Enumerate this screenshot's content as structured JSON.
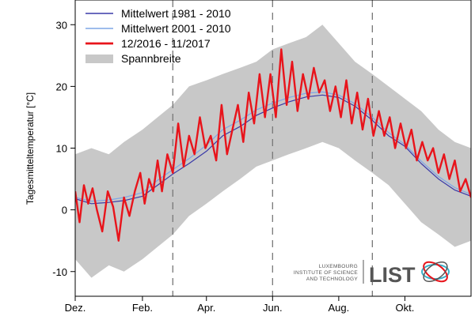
{
  "chart_data": {
    "type": "line",
    "ylabel": "Tagesmitteltemperatur [°C]",
    "xlabel": "",
    "ylim": [
      -14,
      34
    ],
    "yticks": [
      -10,
      0,
      10,
      20,
      30
    ],
    "x_unit": "days from 1 December 2016",
    "xlim": [
      0,
      365
    ],
    "month_ticks": [
      {
        "label": "Dez.",
        "day": 0
      },
      {
        "label": "Feb.",
        "day": 62
      },
      {
        "label": "Apr.",
        "day": 121
      },
      {
        "label": "Jun.",
        "day": 182
      },
      {
        "label": "Aug.",
        "day": 243
      },
      {
        "label": "Okt.",
        "day": 304
      }
    ],
    "dashed_verticals_days": [
      90,
      182,
      274
    ],
    "grid": false,
    "legend_position": "top-left",
    "series": [
      {
        "name": "Mittelwert 1981 - 2010",
        "color": "#3a3aa8",
        "points": [
          [
            0,
            1.8
          ],
          [
            15,
            1.0
          ],
          [
            31,
            1.2
          ],
          [
            45,
            1.5
          ],
          [
            62,
            2.2
          ],
          [
            76,
            4.0
          ],
          [
            90,
            5.8
          ],
          [
            105,
            7.5
          ],
          [
            121,
            9.5
          ],
          [
            136,
            12.0
          ],
          [
            152,
            13.5
          ],
          [
            167,
            15.3
          ],
          [
            182,
            16.5
          ],
          [
            197,
            17.5
          ],
          [
            213,
            18.3
          ],
          [
            228,
            18.6
          ],
          [
            243,
            18.2
          ],
          [
            258,
            16.8
          ],
          [
            274,
            14.5
          ],
          [
            289,
            12.0
          ],
          [
            304,
            10.3
          ],
          [
            319,
            7.5
          ],
          [
            335,
            5.0
          ],
          [
            350,
            3.2
          ],
          [
            365,
            2.2
          ]
        ]
      },
      {
        "name": "Mittelwert 2001 - 2010",
        "color": "#7fa6e6",
        "points": [
          [
            0,
            2.0
          ],
          [
            15,
            1.4
          ],
          [
            31,
            1.6
          ],
          [
            45,
            2.0
          ],
          [
            62,
            2.8
          ],
          [
            76,
            4.8
          ],
          [
            90,
            6.5
          ],
          [
            105,
            8.3
          ],
          [
            121,
            10.5
          ],
          [
            136,
            13.0
          ],
          [
            152,
            14.5
          ],
          [
            167,
            16.2
          ],
          [
            182,
            17.3
          ],
          [
            197,
            18.2
          ],
          [
            213,
            18.9
          ],
          [
            228,
            19.1
          ],
          [
            243,
            18.6
          ],
          [
            258,
            17.2
          ],
          [
            274,
            15.0
          ],
          [
            289,
            12.5
          ],
          [
            304,
            10.6
          ],
          [
            319,
            7.9
          ],
          [
            335,
            5.4
          ],
          [
            350,
            3.6
          ],
          [
            365,
            2.5
          ]
        ]
      },
      {
        "name": "12/2016 - 11/2017",
        "color": "#e8141b",
        "points": [
          [
            0,
            3.0
          ],
          [
            4,
            -2.0
          ],
          [
            8,
            4.0
          ],
          [
            12,
            1.0
          ],
          [
            16,
            3.5
          ],
          [
            20,
            0.0
          ],
          [
            25,
            -3.5
          ],
          [
            30,
            3.0
          ],
          [
            35,
            0.5
          ],
          [
            40,
            -5.0
          ],
          [
            45,
            2.0
          ],
          [
            50,
            -1.0
          ],
          [
            55,
            3.0
          ],
          [
            60,
            6.0
          ],
          [
            64,
            1.0
          ],
          [
            68,
            5.0
          ],
          [
            72,
            3.0
          ],
          [
            76,
            8.0
          ],
          [
            80,
            3.0
          ],
          [
            85,
            9.0
          ],
          [
            90,
            6.0
          ],
          [
            95,
            14.0
          ],
          [
            100,
            7.0
          ],
          [
            105,
            12.0
          ],
          [
            110,
            9.0
          ],
          [
            115,
            15.0
          ],
          [
            120,
            10.0
          ],
          [
            125,
            12.0
          ],
          [
            130,
            8.0
          ],
          [
            135,
            17.0
          ],
          [
            140,
            9.0
          ],
          [
            145,
            13.0
          ],
          [
            150,
            17.0
          ],
          [
            155,
            11.0
          ],
          [
            160,
            19.0
          ],
          [
            165,
            14.0
          ],
          [
            170,
            22.0
          ],
          [
            175,
            15.0
          ],
          [
            180,
            22.0
          ],
          [
            185,
            15.0
          ],
          [
            190,
            26.0
          ],
          [
            195,
            17.0
          ],
          [
            200,
            24.0
          ],
          [
            205,
            16.0
          ],
          [
            210,
            22.0
          ],
          [
            215,
            18.0
          ],
          [
            220,
            23.0
          ],
          [
            225,
            19.0
          ],
          [
            230,
            21.0
          ],
          [
            235,
            16.0
          ],
          [
            240,
            20.0
          ],
          [
            245,
            15.0
          ],
          [
            250,
            21.0
          ],
          [
            255,
            14.0
          ],
          [
            260,
            19.0
          ],
          [
            265,
            13.0
          ],
          [
            270,
            18.0
          ],
          [
            275,
            12.0
          ],
          [
            280,
            16.0
          ],
          [
            285,
            12.0
          ],
          [
            290,
            15.0
          ],
          [
            295,
            10.0
          ],
          [
            300,
            14.0
          ],
          [
            305,
            10.0
          ],
          [
            310,
            13.0
          ],
          [
            315,
            8.0
          ],
          [
            320,
            11.0
          ],
          [
            325,
            8.0
          ],
          [
            330,
            10.0
          ],
          [
            335,
            6.0
          ],
          [
            340,
            9.0
          ],
          [
            345,
            5.0
          ],
          [
            350,
            8.0
          ],
          [
            355,
            3.0
          ],
          [
            360,
            5.0
          ],
          [
            365,
            2.0
          ]
        ]
      }
    ],
    "range_band": {
      "name": "Spannbreite",
      "color": "#c8c8c8",
      "upper": [
        [
          0,
          9
        ],
        [
          15,
          10
        ],
        [
          31,
          9
        ],
        [
          45,
          11
        ],
        [
          62,
          13
        ],
        [
          76,
          15
        ],
        [
          90,
          17
        ],
        [
          105,
          20
        ],
        [
          121,
          21
        ],
        [
          136,
          22
        ],
        [
          152,
          23
        ],
        [
          167,
          24
        ],
        [
          182,
          26
        ],
        [
          197,
          27
        ],
        [
          213,
          28
        ],
        [
          228,
          30
        ],
        [
          243,
          27
        ],
        [
          258,
          24
        ],
        [
          274,
          22
        ],
        [
          289,
          20
        ],
        [
          304,
          18
        ],
        [
          319,
          16
        ],
        [
          335,
          13
        ],
        [
          350,
          11
        ],
        [
          365,
          10
        ]
      ],
      "lower": [
        [
          0,
          -8
        ],
        [
          15,
          -11
        ],
        [
          31,
          -9
        ],
        [
          45,
          -10
        ],
        [
          62,
          -8
        ],
        [
          76,
          -6
        ],
        [
          90,
          -4
        ],
        [
          105,
          -1
        ],
        [
          121,
          1
        ],
        [
          136,
          3
        ],
        [
          152,
          5
        ],
        [
          167,
          7
        ],
        [
          182,
          8
        ],
        [
          197,
          9
        ],
        [
          213,
          10
        ],
        [
          228,
          11
        ],
        [
          243,
          10
        ],
        [
          258,
          8
        ],
        [
          274,
          6
        ],
        [
          289,
          4
        ],
        [
          304,
          1
        ],
        [
          319,
          -2
        ],
        [
          335,
          -4
        ],
        [
          350,
          -6
        ],
        [
          365,
          -5
        ]
      ]
    }
  },
  "logo": {
    "line1": "LUXEMBOURG",
    "line2": "INSTITUTE OF SCIENCE",
    "line3": "AND TECHNOLOGY",
    "wordmark": "LIST",
    "wordmark_color": "#555555",
    "emblem_colors": [
      "#e8141b",
      "#3bb0c9",
      "#555555"
    ]
  }
}
